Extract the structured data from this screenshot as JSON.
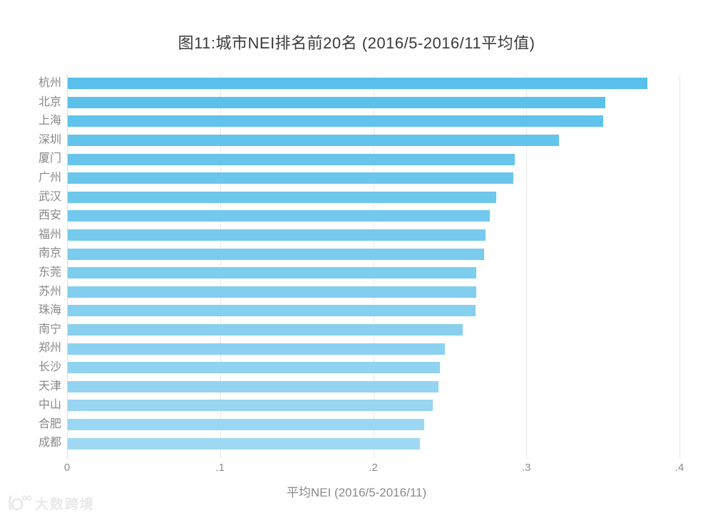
{
  "title": "图11:城市NEI排名前20名 (2016/5-2016/11平均值)",
  "watermark": {
    "text": "大数跨境",
    "logo": "dashu-kuajing-logo"
  },
  "chart_data": {
    "type": "bar",
    "orientation": "horizontal",
    "title": "图11:城市NEI排名前20名 (2016/5-2016/11平均值)",
    "xlabel": "平均NEI (2016/5-2016/11)",
    "ylabel": "",
    "xlim": [
      0,
      0.4
    ],
    "x_ticks": [
      {
        "label": "0",
        "value": 0.0
      },
      {
        "label": ".1",
        "value": 0.1
      },
      {
        "label": ".2",
        "value": 0.2
      },
      {
        "label": ".3",
        "value": 0.3
      },
      {
        "label": ".4",
        "value": 0.4
      }
    ],
    "grid": "vertical-only",
    "legend": "none",
    "categories": [
      "杭州",
      "北京",
      "上海",
      "深圳",
      "厦门",
      "广州",
      "武汉",
      "西安",
      "福州",
      "南京",
      "东莞",
      "苏州",
      "珠海",
      "南宁",
      "郑州",
      "长沙",
      "天津",
      "中山",
      "合肥",
      "成都"
    ],
    "values": [
      0.379,
      0.3515,
      0.35,
      0.321,
      0.2924,
      0.2915,
      0.28,
      0.276,
      0.2733,
      0.2724,
      0.2673,
      0.267,
      0.2665,
      0.2585,
      0.2468,
      0.2435,
      0.2425,
      0.2385,
      0.2333,
      0.2305
    ],
    "bar_colors": [
      "#58C0EA",
      "#5CC1EA",
      "#5FC3EB",
      "#63C4EB",
      "#67C5EC",
      "#6BC6EC",
      "#6EC8EC",
      "#72C9ED",
      "#76CAED",
      "#7ACBEE",
      "#7DCDEE",
      "#81CEEF",
      "#85CFEF",
      "#89D0EF",
      "#8CD2F0",
      "#90D3F0",
      "#94D4F1",
      "#98D5F1",
      "#9BD7F2",
      "#9FD8F2"
    ],
    "accent_color_top": "#58C0EA",
    "accent_color_bottom": "#9FD8F2",
    "gridline_color": "#e7e7e7"
  }
}
